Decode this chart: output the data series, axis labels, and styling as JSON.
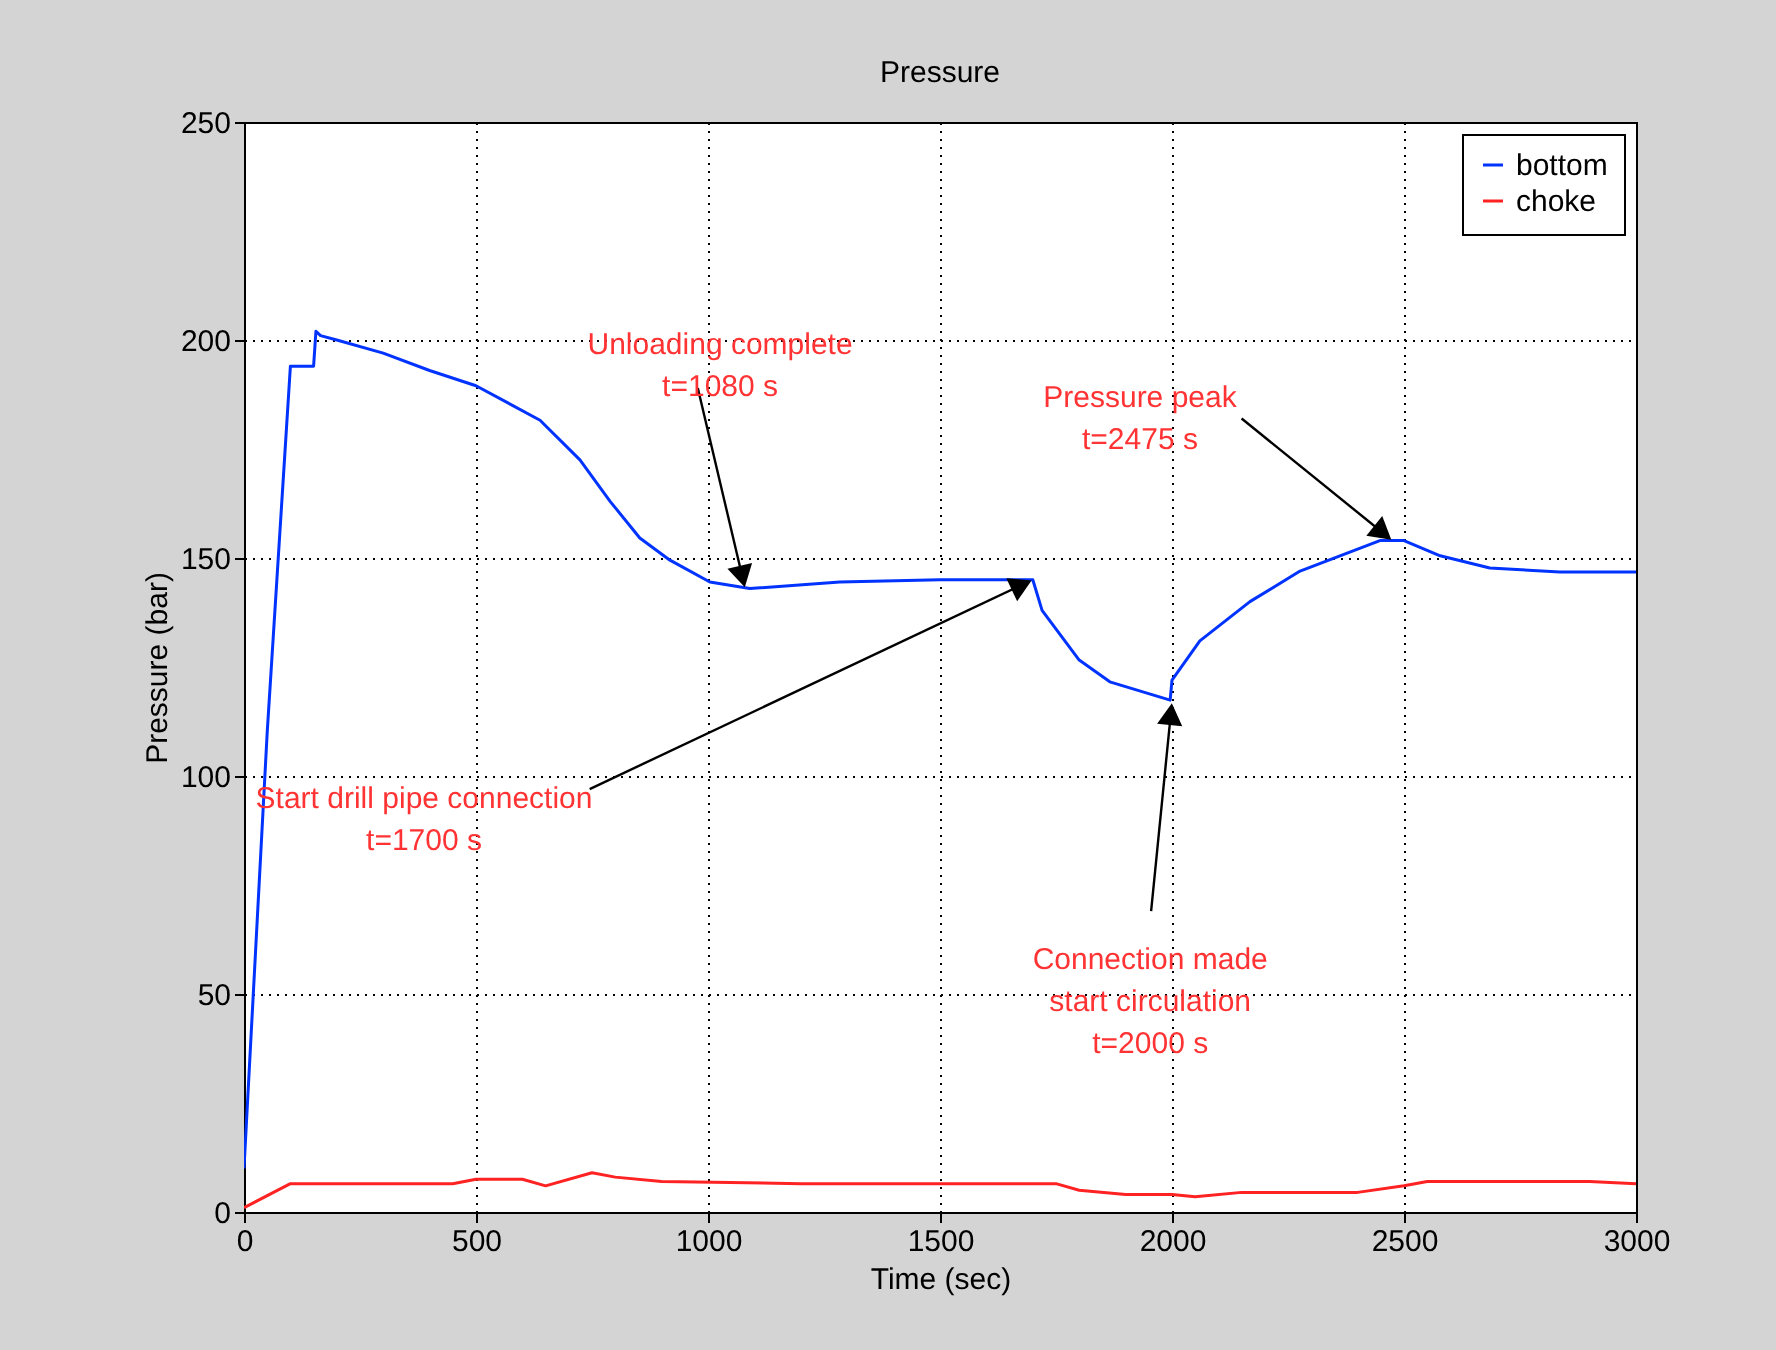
{
  "chart_data": {
    "type": "line",
    "title": "Pressure",
    "xlabel": "Time (sec)",
    "ylabel": "Pressure (bar)",
    "xlim": [
      0,
      3000
    ],
    "xticks": [
      0,
      500,
      1000,
      1500,
      2000,
      2500,
      3000
    ],
    "ylim": [
      0,
      250
    ],
    "yticks": [
      0,
      50,
      100,
      150,
      200,
      250
    ],
    "grid": true,
    "legend": "top right",
    "marker": "none",
    "line_style": "solid",
    "series": [
      {
        "name": "bottom",
        "color": "#0033ff",
        "x": [
          0,
          50,
          100,
          150,
          155,
          165,
          200,
          300,
          400,
          500,
          638,
          724,
          789,
          853,
          918,
          1004,
          1090,
          1284,
          1500,
          1700,
          1720,
          1800,
          1866,
          1996,
          2000,
          2060,
          2168,
          2276,
          2448,
          2500,
          2578,
          2685,
          2836,
          3000
        ],
        "values": [
          10,
          110,
          194,
          194,
          202,
          201,
          200,
          197,
          193,
          189.5,
          181.6,
          172.5,
          163,
          154.6,
          149.5,
          144.5,
          143,
          144.5,
          145,
          145,
          138,
          126.6,
          121.6,
          117.4,
          122,
          131,
          140,
          147,
          154,
          154,
          150.5,
          147.7,
          146.8,
          146.8
        ]
      },
      {
        "name": "choke",
        "color": "#ff2222",
        "x": [
          0,
          100,
          450,
          500,
          600,
          650,
          750,
          800,
          900,
          1200,
          1750,
          1800,
          1900,
          2000,
          2050,
          2150,
          2400,
          2500,
          2550,
          2900,
          3000
        ],
        "values": [
          1,
          6.5,
          6.5,
          7.5,
          7.5,
          6,
          9,
          8,
          7,
          6.5,
          6.5,
          5,
          4,
          4,
          3.5,
          4.5,
          4.5,
          6,
          7,
          7,
          6.5
        ]
      }
    ],
    "annotations": [
      {
        "text": "Unloading complete\nt=1080 s",
        "x": 1080,
        "y": 143
      },
      {
        "text": "Pressure peak\nt=2475 s",
        "x": 2475,
        "y": 154
      },
      {
        "text": "Start drill pipe connection\nt=1700 s",
        "x": 1700,
        "y": 145
      },
      {
        "text": "Connection made\nstart circulation\nt=2000 s",
        "x": 2000,
        "y": 117
      }
    ]
  }
}
